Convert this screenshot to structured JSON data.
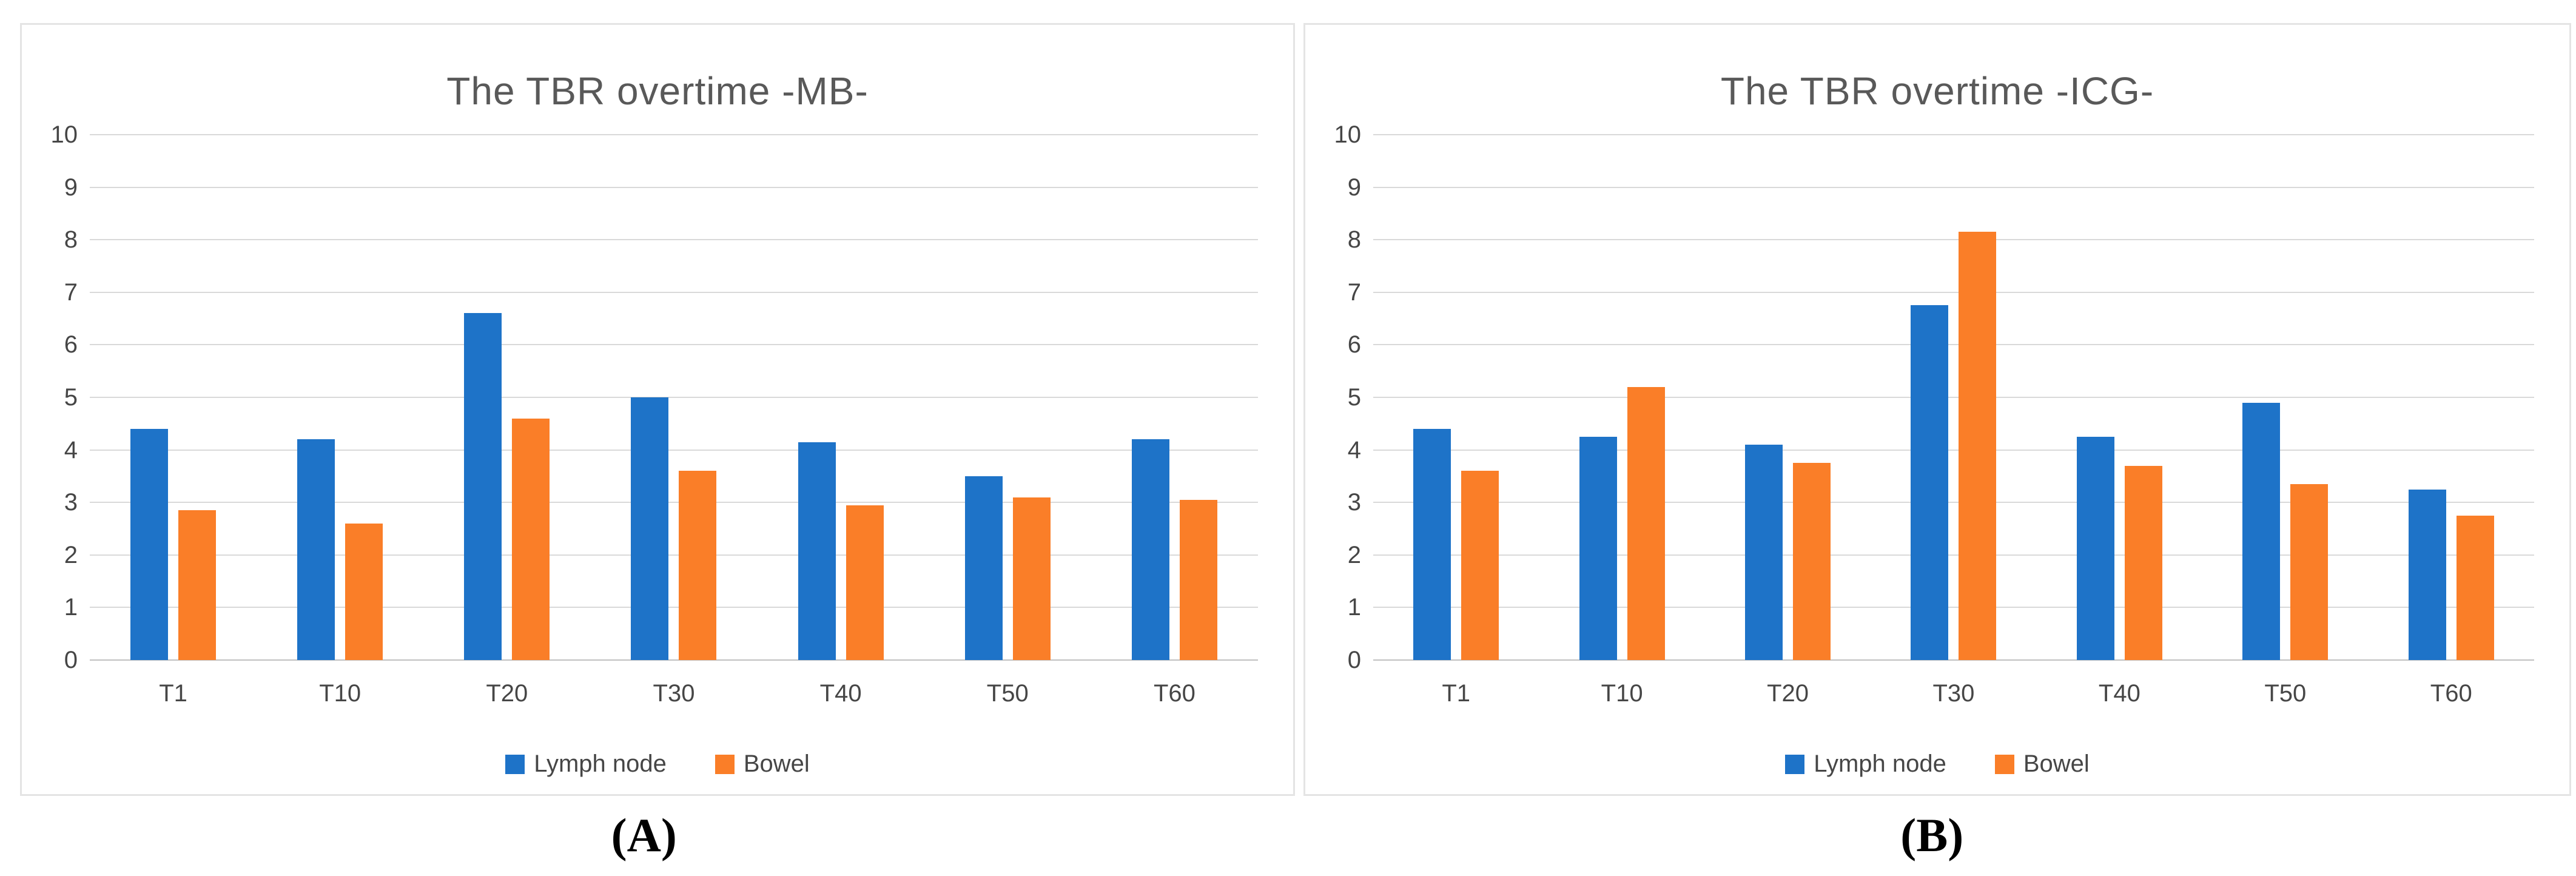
{
  "figure": {
    "captions": [
      "(A)",
      "(B)"
    ]
  },
  "colors": {
    "lymph_node": "#1E73C8",
    "bowel": "#FA7E28",
    "gridline": "#d9d9d9",
    "axis_text": "#464646",
    "title_text": "#595959"
  },
  "chart_data": [
    {
      "type": "bar",
      "title": "The TBR overtime -MB-",
      "categories": [
        "T1",
        "T10",
        "T20",
        "T30",
        "T40",
        "T50",
        "T60"
      ],
      "series": [
        {
          "name": "Lymph node",
          "color": "#1E73C8",
          "values": [
            4.4,
            4.2,
            6.6,
            5.0,
            4.15,
            3.5,
            4.2
          ]
        },
        {
          "name": "Bowel",
          "color": "#FA7E28",
          "values": [
            2.85,
            2.6,
            4.6,
            3.6,
            2.95,
            3.1,
            3.05
          ]
        }
      ],
      "xlabel": "",
      "ylabel": "",
      "ylim": [
        0,
        10
      ],
      "y_ticks": [
        0,
        1,
        2,
        3,
        4,
        5,
        6,
        7,
        8,
        9,
        10
      ],
      "grid": true,
      "legend_position": "bottom"
    },
    {
      "type": "bar",
      "title": "The TBR overtime -ICG-",
      "categories": [
        "T1",
        "T10",
        "T20",
        "T30",
        "T40",
        "T50",
        "T60"
      ],
      "series": [
        {
          "name": "Lymph node",
          "color": "#1E73C8",
          "values": [
            4.4,
            4.25,
            4.1,
            6.75,
            4.25,
            4.9,
            3.25
          ]
        },
        {
          "name": "Bowel",
          "color": "#FA7E28",
          "values": [
            3.6,
            5.2,
            3.75,
            8.15,
            3.7,
            3.35,
            2.75
          ]
        }
      ],
      "xlabel": "",
      "ylabel": "",
      "ylim": [
        0,
        10
      ],
      "y_ticks": [
        0,
        1,
        2,
        3,
        4,
        5,
        6,
        7,
        8,
        9,
        10
      ],
      "grid": true,
      "legend_position": "bottom"
    }
  ]
}
